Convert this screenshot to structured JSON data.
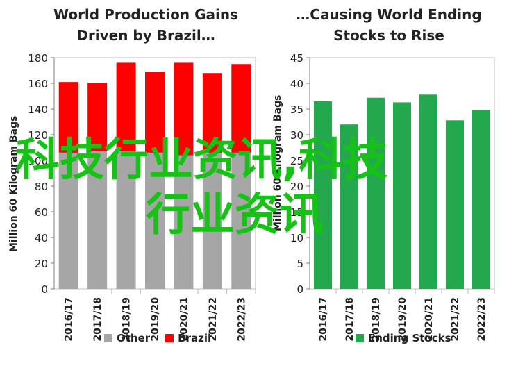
{
  "watermark": {
    "line1": "科技行业资讯,科技",
    "line2": "行业资讯"
  },
  "chart_data": [
    {
      "type": "bar",
      "stacked": true,
      "title": "World Production Gains\nDriven by Brazil…",
      "ylabel": "Million 60 Kilogram Bags",
      "xlabel": "",
      "categories": [
        "2016/17",
        "2017/18",
        "2018/19",
        "2019/20",
        "2020/21",
        "2021/22",
        "2022/23"
      ],
      "series": [
        {
          "name": "Other",
          "color": "#a6a6a6",
          "values": [
            106,
            107,
            107,
            106,
            104,
            106,
            106
          ]
        },
        {
          "name": "Brazil",
          "color": "#ff0000",
          "values": [
            55,
            53,
            69,
            63,
            72,
            62,
            69
          ]
        }
      ],
      "ylim": [
        0,
        180
      ],
      "yticks": [
        0,
        20,
        40,
        60,
        80,
        100,
        120,
        140,
        160,
        180
      ],
      "grid": false,
      "legend": "bottom"
    },
    {
      "type": "bar",
      "title": "…Causing World Ending\nStocks to Rise",
      "ylabel": "Million 60 Kilogram Bags",
      "xlabel": "",
      "categories": [
        "2016/17",
        "2017/18",
        "2018/19",
        "2019/20",
        "2020/21",
        "2021/22",
        "2022/23"
      ],
      "series": [
        {
          "name": "Ending Stocks",
          "color": "#24a84e",
          "values": [
            36.5,
            32.0,
            37.2,
            36.3,
            37.8,
            32.8,
            34.8
          ]
        }
      ],
      "ylim": [
        0,
        45
      ],
      "yticks": [
        0,
        5,
        10,
        15,
        20,
        25,
        30,
        35,
        40,
        45
      ],
      "grid": false,
      "legend": "bottom"
    }
  ]
}
